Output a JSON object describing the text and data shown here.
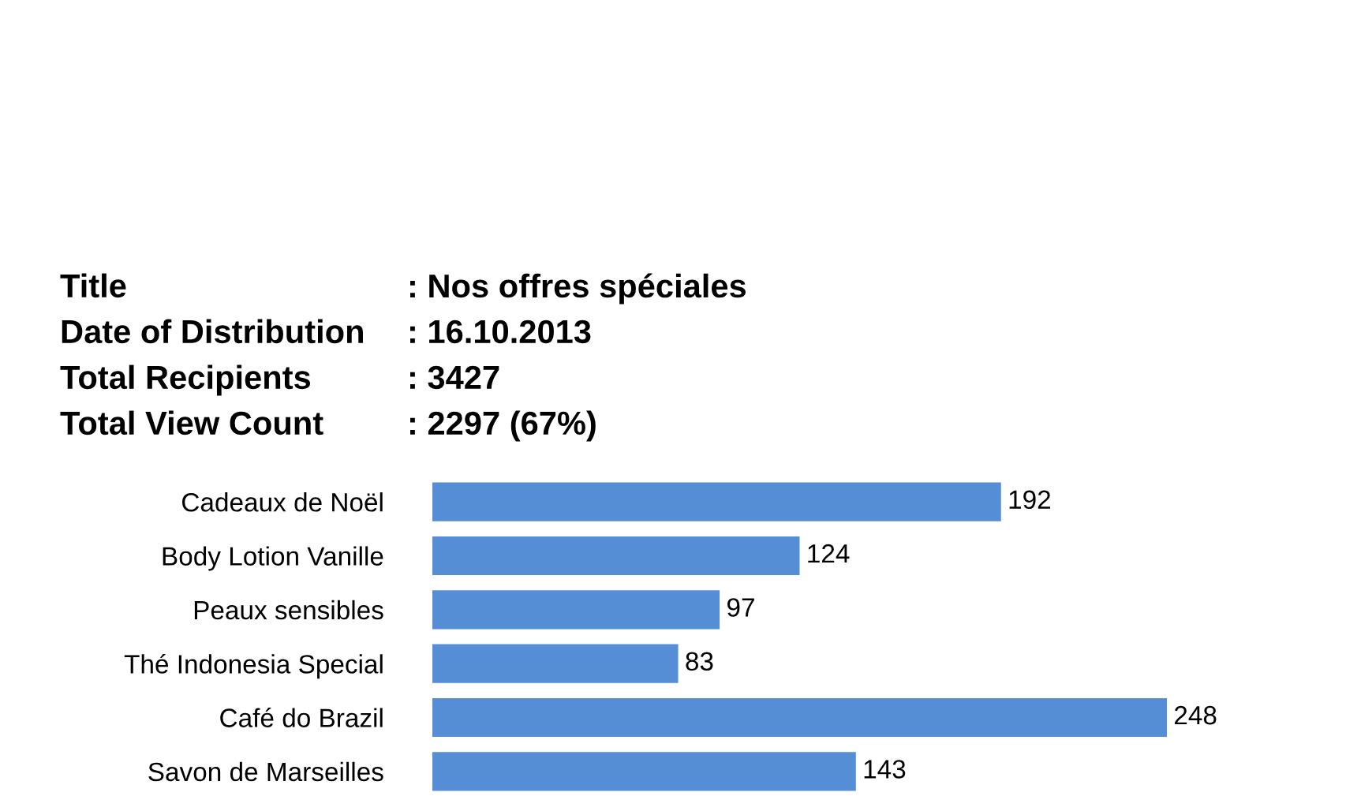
{
  "chart_data": {
    "type": "bar",
    "orientation": "horizontal",
    "data_labels": true,
    "tick_labels": "y",
    "grid": false,
    "legend": false,
    "categories": [
      "Cadeaux de Noël",
      "Body Lotion Vanille",
      "Peaux sensibles",
      "Thé Indonesia Special",
      "Café do Brazil",
      "Savon de Marseilles"
    ],
    "values": [
      192,
      124,
      97,
      83,
      248,
      143
    ],
    "color": "#558ed5",
    "annotations": [
      "Title",
      ": Nos offres spéciales",
      "Date of Distribution",
      ": 16.10.2013",
      "Total Recipients",
      ": 3427",
      "Total View Count",
      ": 2297 (67%)"
    ]
  }
}
